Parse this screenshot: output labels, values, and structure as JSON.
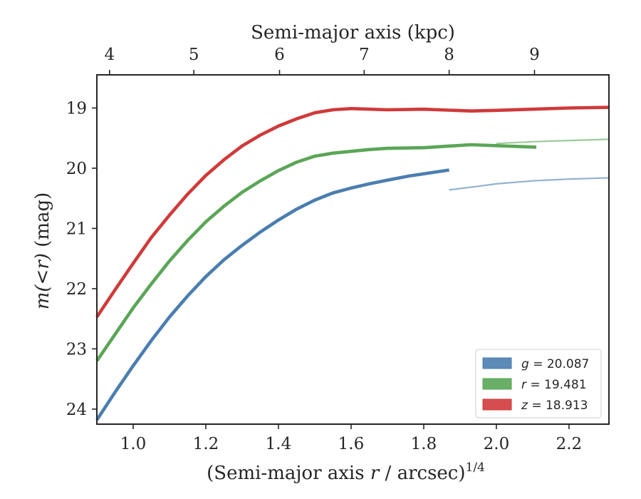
{
  "chart_data": {
    "type": "line",
    "xlabel": "(Semi-major axis r / arcsec)^{1/4}",
    "xlabel_parts": {
      "prefix": "(Semi-major axis ",
      "var": "r",
      "mid": " / arcsec)",
      "sup": "1/4"
    },
    "ylabel": "m(<r) (mag)",
    "ylabel_parts": {
      "math": "m(<r)",
      "unit": " (mag)"
    },
    "top_xlabel": "Semi-major axis (kpc)",
    "xlim": [
      0.9,
      2.31
    ],
    "ylim": [
      24.25,
      18.45
    ],
    "y_inverted": true,
    "x_ticks": [
      1.0,
      1.2,
      1.4,
      1.6,
      1.8,
      2.0,
      2.2
    ],
    "x_tick_labels": [
      "1.0",
      "1.2",
      "1.4",
      "1.6",
      "1.8",
      "2.0",
      "2.2"
    ],
    "y_ticks": [
      19,
      20,
      21,
      22,
      23,
      24
    ],
    "y_tick_labels": [
      "19",
      "20",
      "21",
      "22",
      "23",
      "24"
    ],
    "top_ticks_kpc": [
      4,
      5,
      6,
      7,
      8,
      9
    ],
    "top_tick_labels": [
      "4",
      "5",
      "6",
      "7",
      "8",
      "9"
    ],
    "top_tick_x_positions": [
      0.935,
      1.167,
      1.403,
      1.636,
      1.87,
      2.105
    ],
    "legend_position": "lower-right",
    "series": [
      {
        "name": "g = 20.087",
        "legend_var": "g",
        "legend_value": "= 20.087",
        "color": "#4a7eb0",
        "data": [
          [
            0.9,
            24.18
          ],
          [
            0.95,
            23.72
          ],
          [
            1.0,
            23.28
          ],
          [
            1.05,
            22.86
          ],
          [
            1.1,
            22.47
          ],
          [
            1.15,
            22.12
          ],
          [
            1.2,
            21.8
          ],
          [
            1.25,
            21.52
          ],
          [
            1.3,
            21.28
          ],
          [
            1.35,
            21.06
          ],
          [
            1.4,
            20.86
          ],
          [
            1.45,
            20.68
          ],
          [
            1.5,
            20.53
          ],
          [
            1.55,
            20.41
          ],
          [
            1.6,
            20.33
          ],
          [
            1.65,
            20.26
          ],
          [
            1.7,
            20.2
          ],
          [
            1.76,
            20.13
          ],
          [
            1.87,
            20.03
          ]
        ],
        "model": [
          [
            1.87,
            20.36
          ],
          [
            1.95,
            20.3
          ],
          [
            2.0,
            20.26
          ],
          [
            2.1,
            20.21
          ],
          [
            2.2,
            20.18
          ],
          [
            2.31,
            20.16
          ]
        ]
      },
      {
        "name": "r = 19.481",
        "legend_var": "r",
        "legend_value": "= 19.481",
        "color": "#5aa656",
        "data": [
          [
            0.9,
            23.2
          ],
          [
            0.95,
            22.76
          ],
          [
            1.0,
            22.32
          ],
          [
            1.05,
            21.92
          ],
          [
            1.1,
            21.54
          ],
          [
            1.15,
            21.2
          ],
          [
            1.2,
            20.89
          ],
          [
            1.25,
            20.63
          ],
          [
            1.3,
            20.4
          ],
          [
            1.35,
            20.21
          ],
          [
            1.4,
            20.04
          ],
          [
            1.45,
            19.9
          ],
          [
            1.5,
            19.8
          ],
          [
            1.55,
            19.75
          ],
          [
            1.6,
            19.72
          ],
          [
            1.65,
            19.69
          ],
          [
            1.7,
            19.67
          ],
          [
            1.8,
            19.66
          ],
          [
            1.93,
            19.61
          ],
          [
            2.11,
            19.65
          ]
        ],
        "model": [
          [
            2.0,
            19.59
          ],
          [
            2.1,
            19.56
          ],
          [
            2.2,
            19.54
          ],
          [
            2.31,
            19.52
          ]
        ]
      },
      {
        "name": "z = 18.913",
        "legend_var": "z",
        "legend_value": "= 18.913",
        "color": "#d03a3a",
        "data": [
          [
            0.9,
            22.47
          ],
          [
            0.95,
            22.02
          ],
          [
            1.0,
            21.58
          ],
          [
            1.05,
            21.15
          ],
          [
            1.1,
            20.78
          ],
          [
            1.15,
            20.43
          ],
          [
            1.2,
            20.12
          ],
          [
            1.25,
            19.86
          ],
          [
            1.3,
            19.63
          ],
          [
            1.35,
            19.45
          ],
          [
            1.4,
            19.3
          ],
          [
            1.45,
            19.18
          ],
          [
            1.5,
            19.08
          ],
          [
            1.55,
            19.03
          ],
          [
            1.6,
            19.01
          ],
          [
            1.7,
            19.03
          ],
          [
            1.8,
            19.02
          ],
          [
            1.93,
            19.05
          ],
          [
            2.0,
            19.04
          ],
          [
            2.1,
            19.02
          ],
          [
            2.2,
            19.0
          ],
          [
            2.31,
            18.99
          ]
        ],
        "model": []
      }
    ]
  }
}
